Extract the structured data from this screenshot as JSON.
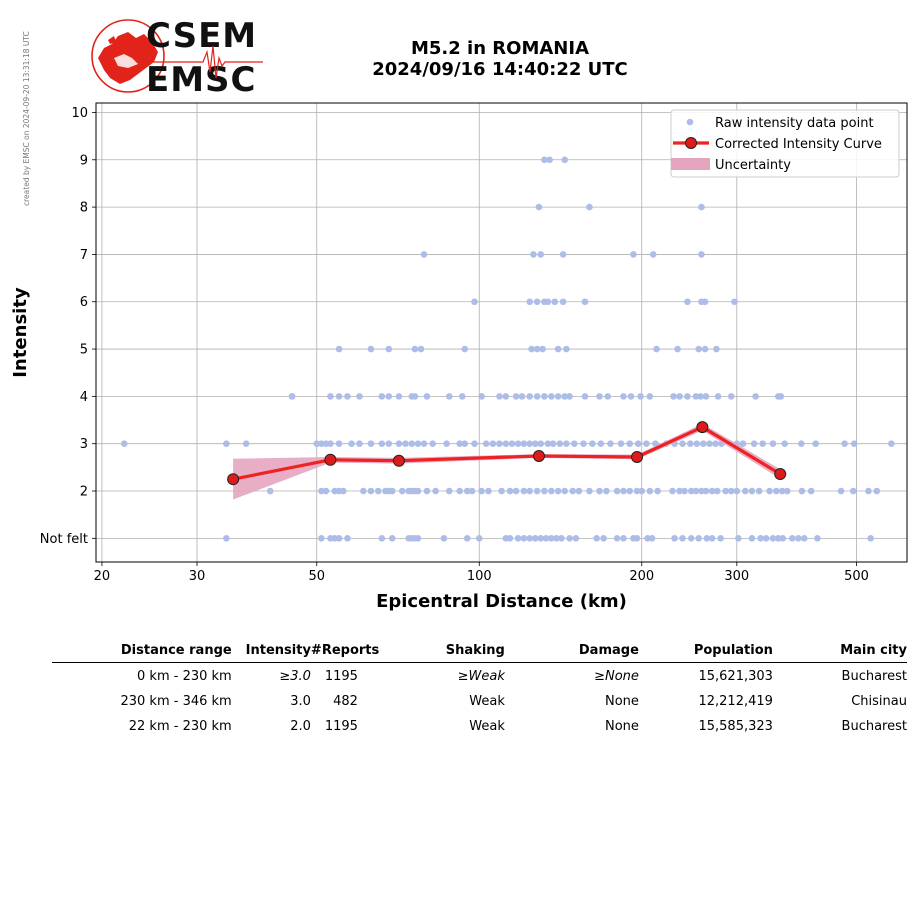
{
  "watermark": "created by EMSC on 2024-09-20 13:31:18 UTC",
  "logo": {
    "line1": "CSEM",
    "line2": "EMSC",
    "colors": {
      "red": "#e2231a",
      "dark": "#111111"
    }
  },
  "title": {
    "line1": "M5.2 in ROMANIA",
    "line2": "2024/09/16 14:40:22 UTC"
  },
  "chart_data": {
    "type": "scatter",
    "xlabel": "Epicentral Distance (km)",
    "ylabel": "Intensity",
    "xscale": "log",
    "xlim": [
      19.5,
      620
    ],
    "ylim": [
      0.5,
      10.2
    ],
    "x_ticks": [
      20,
      30,
      50,
      100,
      200,
      300,
      500
    ],
    "x_tick_labels": [
      "20",
      "30",
      "50",
      "100",
      "200",
      "300",
      "500"
    ],
    "y_ticks": [
      1,
      2,
      3,
      4,
      5,
      6,
      7,
      8,
      9,
      10
    ],
    "y_tick_labels": [
      "Not felt",
      "2",
      "3",
      "4",
      "5",
      "6",
      "7",
      "8",
      "9",
      "10"
    ],
    "grid": true,
    "legend_position": "top-right",
    "colors": {
      "raw": "#aebde8",
      "curve": "#ee2222",
      "marker": "#dd1b1b",
      "uncertainty": "#e4a5bf"
    },
    "series": [
      {
        "name": "Raw intensity data point",
        "type": "scatter",
        "points": [
          [
            22,
            3
          ],
          [
            34,
            3
          ],
          [
            37,
            3
          ],
          [
            41,
            2
          ],
          [
            45,
            4
          ],
          [
            34,
            1
          ],
          [
            51,
            1
          ],
          [
            53,
            1
          ],
          [
            54,
            1
          ],
          [
            55,
            1
          ],
          [
            57,
            1
          ],
          [
            66,
            1
          ],
          [
            69,
            1
          ],
          [
            74,
            1
          ],
          [
            75,
            1
          ],
          [
            76,
            1
          ],
          [
            77,
            1
          ],
          [
            86,
            1
          ],
          [
            95,
            1
          ],
          [
            100,
            1
          ],
          [
            112,
            1
          ],
          [
            114,
            1
          ],
          [
            118,
            1
          ],
          [
            121,
            1
          ],
          [
            124,
            1
          ],
          [
            127,
            1
          ],
          [
            130,
            1
          ],
          [
            133,
            1
          ],
          [
            136,
            1
          ],
          [
            139,
            1
          ],
          [
            142,
            1
          ],
          [
            147,
            1
          ],
          [
            151,
            1
          ],
          [
            165,
            1
          ],
          [
            170,
            1
          ],
          [
            180,
            1
          ],
          [
            185,
            1
          ],
          [
            193,
            1
          ],
          [
            196,
            1
          ],
          [
            205,
            1
          ],
          [
            209,
            1
          ],
          [
            230,
            1
          ],
          [
            238,
            1
          ],
          [
            247,
            1
          ],
          [
            255,
            1
          ],
          [
            264,
            1
          ],
          [
            270,
            1
          ],
          [
            280,
            1
          ],
          [
            302,
            1
          ],
          [
            320,
            1
          ],
          [
            332,
            1
          ],
          [
            340,
            1
          ],
          [
            350,
            1
          ],
          [
            358,
            1
          ],
          [
            365,
            1
          ],
          [
            380,
            1
          ],
          [
            390,
            1
          ],
          [
            400,
            1
          ],
          [
            423,
            1
          ],
          [
            531,
            1
          ],
          [
            51,
            2
          ],
          [
            52,
            2
          ],
          [
            54,
            2
          ],
          [
            55,
            2
          ],
          [
            56,
            2
          ],
          [
            61,
            2
          ],
          [
            63,
            2
          ],
          [
            65,
            2
          ],
          [
            67,
            2
          ],
          [
            68,
            2
          ],
          [
            69,
            2
          ],
          [
            72,
            2
          ],
          [
            74,
            2
          ],
          [
            75,
            2
          ],
          [
            76,
            2
          ],
          [
            77,
            2
          ],
          [
            80,
            2
          ],
          [
            83,
            2
          ],
          [
            88,
            2
          ],
          [
            92,
            2
          ],
          [
            95,
            2
          ],
          [
            97,
            2
          ],
          [
            101,
            2
          ],
          [
            104,
            2
          ],
          [
            110,
            2
          ],
          [
            114,
            2
          ],
          [
            117,
            2
          ],
          [
            121,
            2
          ],
          [
            124,
            2
          ],
          [
            128,
            2
          ],
          [
            132,
            2
          ],
          [
            136,
            2
          ],
          [
            140,
            2
          ],
          [
            144,
            2
          ],
          [
            149,
            2
          ],
          [
            153,
            2
          ],
          [
            160,
            2
          ],
          [
            167,
            2
          ],
          [
            172,
            2
          ],
          [
            180,
            2
          ],
          [
            185,
            2
          ],
          [
            190,
            2
          ],
          [
            196,
            2
          ],
          [
            200,
            2
          ],
          [
            207,
            2
          ],
          [
            214,
            2
          ],
          [
            228,
            2
          ],
          [
            235,
            2
          ],
          [
            240,
            2
          ],
          [
            247,
            2
          ],
          [
            252,
            2
          ],
          [
            258,
            2
          ],
          [
            263,
            2
          ],
          [
            270,
            2
          ],
          [
            276,
            2
          ],
          [
            286,
            2
          ],
          [
            293,
            2
          ],
          [
            300,
            2
          ],
          [
            311,
            2
          ],
          [
            320,
            2
          ],
          [
            330,
            2
          ],
          [
            345,
            2
          ],
          [
            355,
            2
          ],
          [
            364,
            2
          ],
          [
            372,
            2
          ],
          [
            396,
            2
          ],
          [
            412,
            2
          ],
          [
            468,
            2
          ],
          [
            493,
            2
          ],
          [
            526,
            2
          ],
          [
            545,
            2
          ],
          [
            50,
            3
          ],
          [
            51,
            3
          ],
          [
            52,
            3
          ],
          [
            53,
            3
          ],
          [
            55,
            3
          ],
          [
            58,
            3
          ],
          [
            60,
            3
          ],
          [
            63,
            3
          ],
          [
            66,
            3
          ],
          [
            68,
            3
          ],
          [
            71,
            3
          ],
          [
            73,
            3
          ],
          [
            75,
            3
          ],
          [
            77,
            3
          ],
          [
            79,
            3
          ],
          [
            82,
            3
          ],
          [
            87,
            3
          ],
          [
            92,
            3
          ],
          [
            94,
            3
          ],
          [
            98,
            3
          ],
          [
            103,
            3
          ],
          [
            106,
            3
          ],
          [
            109,
            3
          ],
          [
            112,
            3
          ],
          [
            115,
            3
          ],
          [
            118,
            3
          ],
          [
            121,
            3
          ],
          [
            124,
            3
          ],
          [
            127,
            3
          ],
          [
            130,
            3
          ],
          [
            134,
            3
          ],
          [
            137,
            3
          ],
          [
            141,
            3
          ],
          [
            145,
            3
          ],
          [
            150,
            3
          ],
          [
            156,
            3
          ],
          [
            162,
            3
          ],
          [
            168,
            3
          ],
          [
            175,
            3
          ],
          [
            183,
            3
          ],
          [
            190,
            3
          ],
          [
            197,
            3
          ],
          [
            204,
            3
          ],
          [
            212,
            3
          ],
          [
            222,
            3
          ],
          [
            230,
            3
          ],
          [
            238,
            3
          ],
          [
            246,
            3
          ],
          [
            253,
            3
          ],
          [
            260,
            3
          ],
          [
            267,
            3
          ],
          [
            274,
            3
          ],
          [
            281,
            3
          ],
          [
            292,
            3
          ],
          [
            300,
            3
          ],
          [
            308,
            3
          ],
          [
            323,
            3
          ],
          [
            335,
            3
          ],
          [
            350,
            3
          ],
          [
            368,
            3
          ],
          [
            395,
            3
          ],
          [
            420,
            3
          ],
          [
            475,
            3
          ],
          [
            495,
            3
          ],
          [
            580,
            3
          ],
          [
            45,
            4
          ],
          [
            53,
            4
          ],
          [
            55,
            4
          ],
          [
            57,
            4
          ],
          [
            60,
            4
          ],
          [
            66,
            4
          ],
          [
            68,
            4
          ],
          [
            71,
            4
          ],
          [
            75,
            4
          ],
          [
            76,
            4
          ],
          [
            80,
            4
          ],
          [
            88,
            4
          ],
          [
            93,
            4
          ],
          [
            101,
            4
          ],
          [
            109,
            4
          ],
          [
            112,
            4
          ],
          [
            117,
            4
          ],
          [
            120,
            4
          ],
          [
            124,
            4
          ],
          [
            128,
            4
          ],
          [
            132,
            4
          ],
          [
            136,
            4
          ],
          [
            140,
            4
          ],
          [
            144,
            4
          ],
          [
            147,
            4
          ],
          [
            157,
            4
          ],
          [
            167,
            4
          ],
          [
            173,
            4
          ],
          [
            185,
            4
          ],
          [
            191,
            4
          ],
          [
            199,
            4
          ],
          [
            207,
            4
          ],
          [
            229,
            4
          ],
          [
            235,
            4
          ],
          [
            243,
            4
          ],
          [
            252,
            4
          ],
          [
            257,
            4
          ],
          [
            263,
            4
          ],
          [
            277,
            4
          ],
          [
            293,
            4
          ],
          [
            325,
            4
          ],
          [
            358,
            4
          ],
          [
            362,
            4
          ],
          [
            55,
            5
          ],
          [
            63,
            5
          ],
          [
            68,
            5
          ],
          [
            76,
            5
          ],
          [
            78,
            5
          ],
          [
            94,
            5
          ],
          [
            125,
            5
          ],
          [
            128,
            5
          ],
          [
            131,
            5
          ],
          [
            140,
            5
          ],
          [
            145,
            5
          ],
          [
            213,
            5
          ],
          [
            233,
            5
          ],
          [
            255,
            5
          ],
          [
            262,
            5
          ],
          [
            275,
            5
          ],
          [
            98,
            6
          ],
          [
            124,
            6
          ],
          [
            128,
            6
          ],
          [
            132,
            6
          ],
          [
            134,
            6
          ],
          [
            138,
            6
          ],
          [
            143,
            6
          ],
          [
            157,
            6
          ],
          [
            243,
            6
          ],
          [
            258,
            6
          ],
          [
            262,
            6
          ],
          [
            297,
            6
          ],
          [
            79,
            7
          ],
          [
            126,
            7
          ],
          [
            130,
            7
          ],
          [
            143,
            7
          ],
          [
            193,
            7
          ],
          [
            210,
            7
          ],
          [
            258,
            7
          ],
          [
            129,
            8
          ],
          [
            160,
            8
          ],
          [
            258,
            8
          ],
          [
            132,
            9
          ],
          [
            135,
            9
          ],
          [
            144,
            9
          ]
        ]
      },
      {
        "name": "Corrected Intensity Curve",
        "type": "line",
        "x": [
          35,
          53,
          71,
          129,
          196,
          259,
          361
        ],
        "y": [
          2.25,
          2.66,
          2.64,
          2.74,
          2.72,
          3.35,
          2.36
        ]
      },
      {
        "name": "Uncertainty",
        "type": "band",
        "x": [
          35,
          53,
          71,
          129,
          196,
          259,
          361
        ],
        "upper": [
          2.68,
          2.72,
          2.7,
          2.78,
          2.77,
          3.42,
          2.46
        ],
        "lower": [
          1.82,
          2.6,
          2.58,
          2.7,
          2.67,
          3.28,
          2.26
        ]
      }
    ]
  },
  "table": {
    "headers": [
      "Distance range",
      "Intensity",
      "#Reports",
      "Shaking",
      "Damage",
      "Population",
      "Main city"
    ],
    "rows": [
      [
        "0 km -  230 km",
        "≥3.0",
        "1195",
        "≥Weak",
        "≥None",
        "15,621,303",
        "Bucharest"
      ],
      [
        "230 km -  346 km",
        "3.0",
        "482",
        "Weak",
        "None",
        "12,212,419",
        "Chisinau"
      ],
      [
        "22 km -  230 km",
        "2.0",
        "1195",
        "Weak",
        "None",
        "15,585,323",
        "Bucharest"
      ]
    ],
    "italic_cells": [
      [
        0,
        1
      ],
      [
        0,
        3
      ],
      [
        0,
        4
      ]
    ]
  }
}
